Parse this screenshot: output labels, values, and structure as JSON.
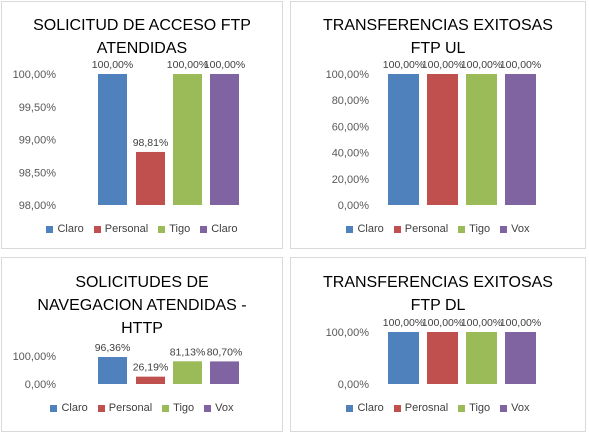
{
  "palette": {
    "blue": "#4f81bd",
    "red": "#c0504d",
    "green": "#9bbb59",
    "purple": "#8064a2"
  },
  "chart_data": [
    {
      "type": "bar",
      "title": "SOLICITUD DE ACCESO FTP\nATENDIDAS",
      "categories": [
        "Claro",
        "Personal",
        "Tigo",
        "Claro"
      ],
      "values": [
        100.0,
        98.81,
        100.0,
        100.0
      ],
      "value_labels": [
        "100,00%",
        "98,81%",
        "100,00%",
        "100,00%"
      ],
      "ylim": [
        98.0,
        100.0
      ],
      "yticks": [
        "98,00%",
        "98,50%",
        "99,00%",
        "99,50%",
        "100,00%"
      ],
      "legend": [
        "Claro",
        "Personal",
        "Tigo",
        "Claro"
      ],
      "legend_position": "bottom",
      "grid": false
    },
    {
      "type": "bar",
      "title": "TRANSFERENCIAS EXITOSAS\nFTP UL",
      "categories": [
        "Claro",
        "Personal",
        "Tigo",
        "Vox"
      ],
      "values": [
        100.0,
        100.0,
        100.0,
        100.0
      ],
      "value_labels": [
        "100,00%",
        "100,00%",
        "100,00%",
        "100,00%"
      ],
      "ylim": [
        0,
        100
      ],
      "yticks": [
        "0,00%",
        "20,00%",
        "40,00%",
        "60,00%",
        "80,00%",
        "100,00%"
      ],
      "legend": [
        "Claro",
        "Personal",
        "Tigo",
        "Vox"
      ],
      "legend_position": "bottom",
      "grid": false
    },
    {
      "type": "bar",
      "title": "SOLICITUDES DE\nNAVEGACION ATENDIDAS -\nHTTP",
      "categories": [
        "Claro",
        "Personal",
        "Tigo",
        "Vox"
      ],
      "values": [
        96.36,
        26.19,
        81.13,
        80.7
      ],
      "value_labels": [
        "96,36%",
        "26,19%",
        "81,13%",
        "80,70%"
      ],
      "ylim": [
        0,
        100
      ],
      "yticks": [
        "0,00%",
        "100,00%"
      ],
      "legend": [
        "Claro",
        "Personal",
        "Tigo",
        "Vox"
      ],
      "legend_position": "bottom",
      "grid": false
    },
    {
      "type": "bar",
      "title": "TRANSFERENCIAS EXITOSAS\nFTP DL",
      "categories": [
        "Claro",
        "Perosnal",
        "Tigo",
        "Vox"
      ],
      "values": [
        100.0,
        100.0,
        100.0,
        100.0
      ],
      "value_labels": [
        "100,00%",
        "100,00%",
        "100,00%",
        "100,00%"
      ],
      "ylim": [
        0,
        100
      ],
      "yticks": [
        "0,00%",
        "100,00%"
      ],
      "legend": [
        "Claro",
        "Perosnal",
        "Tigo",
        "Vox"
      ],
      "legend_position": "bottom",
      "grid": false
    }
  ]
}
